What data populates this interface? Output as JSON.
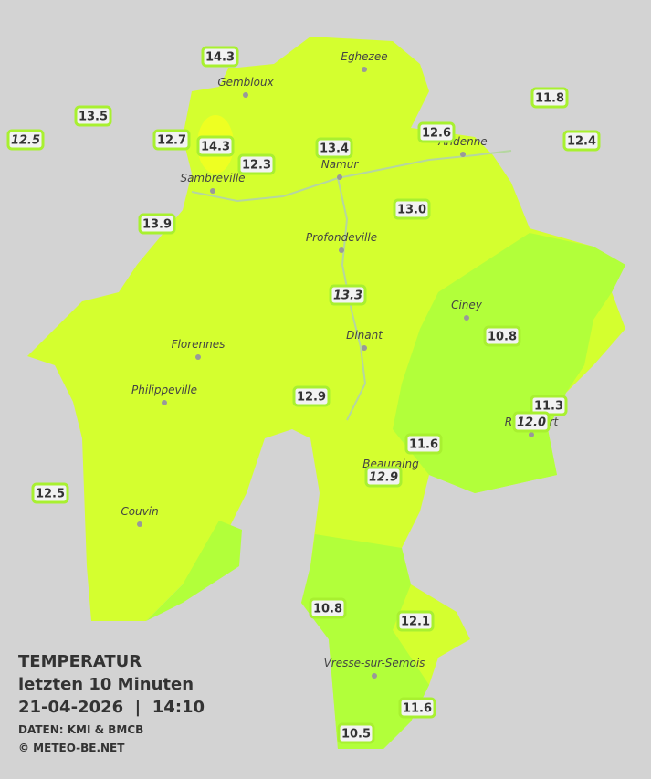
{
  "map": {
    "stations": [
      {
        "text": "14.3"
      },
      {
        "text": "13.5"
      },
      {
        "text": "12.5",
        "italic": true
      },
      {
        "text": "12.7"
      },
      {
        "text": "14.3"
      },
      {
        "text": "12.3"
      },
      {
        "text": "13.4"
      },
      {
        "text": "12.6"
      },
      {
        "text": "11.8"
      },
      {
        "text": "12.4"
      },
      {
        "text": "13.9"
      },
      {
        "text": "13.0"
      },
      {
        "text": "13.3",
        "italic": true
      },
      {
        "text": "10.8"
      },
      {
        "text": "12.9"
      },
      {
        "text": "11.3"
      },
      {
        "text": "12.0",
        "italic": true
      },
      {
        "text": "11.6"
      },
      {
        "text": "12.9",
        "italic": true
      },
      {
        "text": "12.5"
      },
      {
        "text": "10.8"
      },
      {
        "text": "12.1"
      },
      {
        "text": "11.6"
      },
      {
        "text": "10.5"
      }
    ],
    "towns": [
      "Eghezee",
      "Gembloux",
      "Andenne",
      "Namur",
      "Sambreville",
      "Profondeville",
      "Ciney",
      "Dinant",
      "Florennes",
      "Philippeville",
      "Rochefort",
      "Beauraing",
      "Couvin",
      "Vresse-sur-Semois"
    ],
    "legend": {
      "title": "TEMPERATUR",
      "subtitle": "letzten 10 Minuten",
      "datetime": "21-04-2026  |  14:10",
      "source": "DATEN: KMI & BMCB",
      "copyright": "© METEO-BE.NET"
    }
  }
}
